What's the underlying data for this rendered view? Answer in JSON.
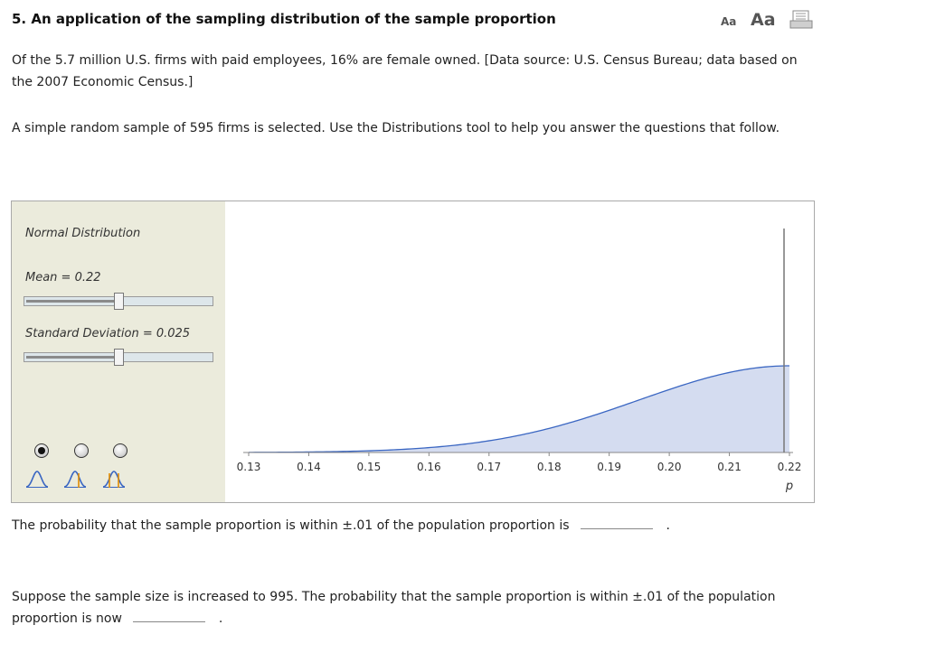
{
  "header": {
    "title": "5. An application of the sampling distribution of the sample proportion",
    "font_small_label": "Aa",
    "font_large_label": "Aa",
    "print_icon": "print-icon"
  },
  "intro": {
    "paragraph1": "Of the 5.7 million U.S. firms with paid employees, 16% are female owned. [Data source: U.S. Census Bureau; data based on the 2007 Economic Census.]",
    "paragraph2": "A simple random sample of 595 firms is selected. Use the Distributions tool to help you answer the questions that follow."
  },
  "tool": {
    "distribution_label": "Normal Distribution",
    "mean_label": "Mean = 0.22",
    "sd_label": "Standard Deviation = 0.025",
    "mean_slider_fraction": 0.5,
    "sd_slider_fraction": 0.5,
    "selected_mode": 0,
    "modes": [
      "tail-left-icon",
      "two-sided-icon",
      "middle-icon"
    ],
    "colors": {
      "panel_bg": "#ebebdc",
      "curve_line": "#3a66c2",
      "curve_fill": "#d4dcf0",
      "marker": "#e08a00"
    }
  },
  "chart_data": {
    "type": "area",
    "distribution": "normal",
    "mean": 0.22,
    "sd": 0.025,
    "x_ticks": [
      "0.13",
      "0.14",
      "0.15",
      "0.16",
      "0.17",
      "0.18",
      "0.19",
      "0.20",
      "0.21",
      "0.22"
    ],
    "xlim": [
      0.13,
      0.22
    ],
    "xlabel": "p",
    "vertical_line_at": 0.22,
    "grid": false
  },
  "questions": {
    "q1_text": "The probability that the sample proportion is within ±.01 of the population proportion is",
    "q1_end": ".",
    "q2_text": "Suppose the sample size is increased to 995. The probability that the sample proportion is within ±.01 of the population proportion is now",
    "q2_end": "."
  }
}
